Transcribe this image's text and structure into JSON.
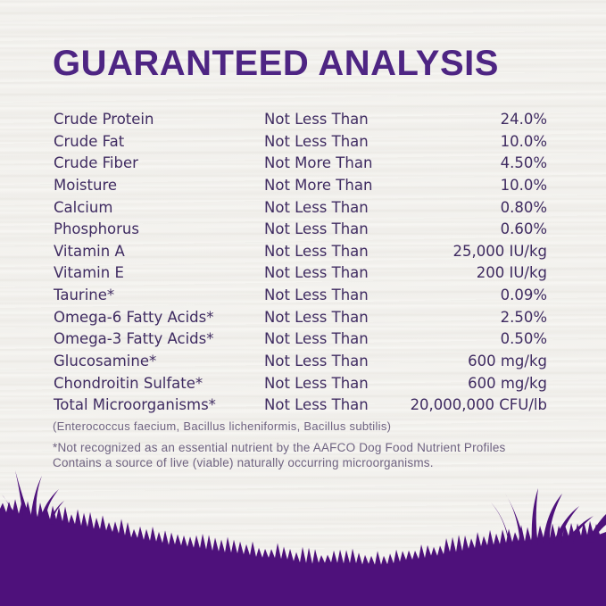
{
  "title": "GUARANTEED ANALYSIS",
  "colors": {
    "title_purple": "#4e2583",
    "body_text_purple": "#3f2b61",
    "footnote_gray_purple": "#6e6280",
    "grass_purple": "#4e117b",
    "background_offwhite": "#f7f6f3"
  },
  "table": {
    "rows": [
      {
        "nutrient": "Crude Protein",
        "qualifier": "Not Less Than",
        "value": "24.0%"
      },
      {
        "nutrient": "Crude Fat",
        "qualifier": "Not Less Than",
        "value": "10.0%"
      },
      {
        "nutrient": "Crude Fiber",
        "qualifier": "Not More Than",
        "value": "4.50%"
      },
      {
        "nutrient": "Moisture",
        "qualifier": "Not More Than",
        "value": "10.0%"
      },
      {
        "nutrient": "Calcium",
        "qualifier": "Not Less Than",
        "value": "0.80%"
      },
      {
        "nutrient": "Phosphorus",
        "qualifier": "Not Less Than",
        "value": "0.60%"
      },
      {
        "nutrient": "Vitamin A",
        "qualifier": "Not Less Than",
        "value": "25,000 IU/kg"
      },
      {
        "nutrient": "Vitamin E",
        "qualifier": "Not Less Than",
        "value": "200 IU/kg"
      },
      {
        "nutrient": "Taurine*",
        "qualifier": "Not Less Than",
        "value": "0.09%"
      },
      {
        "nutrient": "Omega-6 Fatty Acids*",
        "qualifier": "Not Less Than",
        "value": "2.50%"
      },
      {
        "nutrient": "Omega-3 Fatty Acids*",
        "qualifier": "Not Less Than",
        "value": "0.50%"
      },
      {
        "nutrient": "Glucosamine*",
        "qualifier": "Not Less Than",
        "value": "600 mg/kg"
      },
      {
        "nutrient": "Chondroitin Sulfate*",
        "qualifier": "Not Less Than",
        "value": "600 mg/kg"
      },
      {
        "nutrient": "Total Microorganisms*",
        "qualifier": "Not Less Than",
        "value": "20,000,000 CFU/lb"
      }
    ],
    "microorganisms_detail": "(Enterococcus faecium, Bacillus licheniformis, Bacillus subtilis)"
  },
  "footnotes": [
    "*Not recognized as an essential nutrient by the AAFCO Dog Food Nutrient Profiles",
    "Contains a source of live (viable) naturally occurring microorganisms."
  ]
}
